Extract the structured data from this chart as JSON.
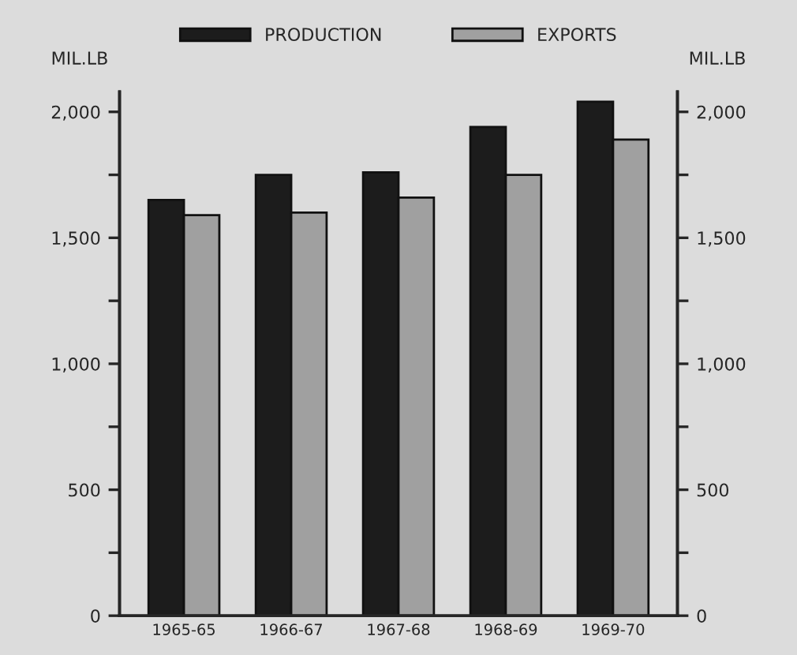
{
  "chart_data": {
    "type": "bar",
    "ylabel": "MIL.LB",
    "y2label": "MIL.LB",
    "categories": [
      "1965-65",
      "1966-67",
      "1967-68",
      "1968-69",
      "1969-70"
    ],
    "series": [
      {
        "name": "PRODUCTION",
        "color": "#1c1c1c",
        "values": [
          1650,
          1750,
          1760,
          1940,
          2040
        ]
      },
      {
        "name": "EXPORTS",
        "color": "#a0a0a0",
        "values": [
          1590,
          1600,
          1660,
          1750,
          1890
        ]
      }
    ],
    "ylim": [
      0,
      2080
    ],
    "yticks": [
      {
        "value": 0,
        "label": "0"
      },
      {
        "value": 250,
        "label": null
      },
      {
        "value": 500,
        "label": "500"
      },
      {
        "value": 750,
        "label": null
      },
      {
        "value": 1000,
        "label": "1,000"
      },
      {
        "value": 1250,
        "label": null
      },
      {
        "value": 1500,
        "label": "1,500"
      },
      {
        "value": 1750,
        "label": null
      },
      {
        "value": 2000,
        "label": "2,000"
      }
    ],
    "y2lim": [
      0,
      2080
    ],
    "y2ticks": [
      {
        "value": 0,
        "label": "0"
      },
      {
        "value": 250,
        "label": null
      },
      {
        "value": 500,
        "label": "500"
      },
      {
        "value": 750,
        "label": null
      },
      {
        "value": 1000,
        "label": "1,000"
      },
      {
        "value": 1250,
        "label": null
      },
      {
        "value": 1500,
        "label": "1,500"
      },
      {
        "value": 1750,
        "label": null
      },
      {
        "value": 2000,
        "label": "2,000"
      }
    ],
    "legend": "top",
    "grid": false
  }
}
